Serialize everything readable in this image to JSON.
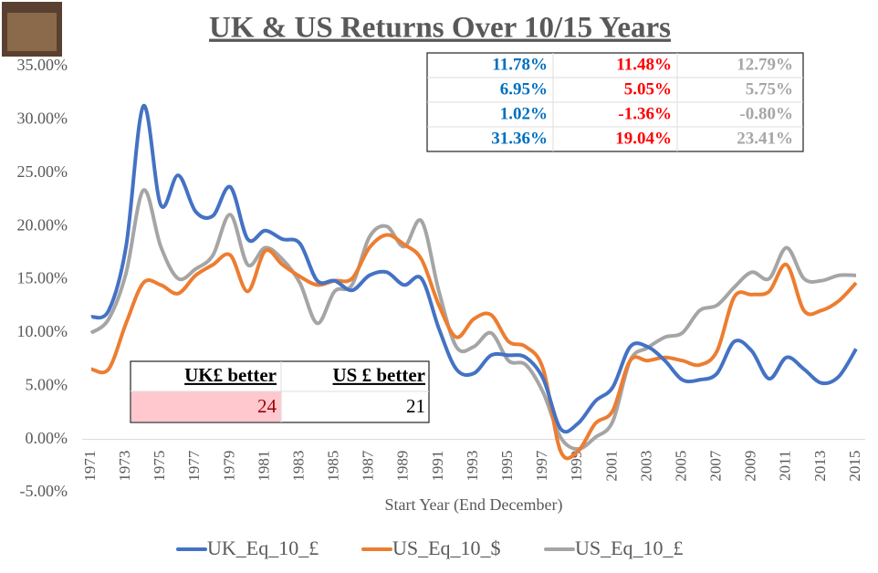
{
  "chart_data": {
    "type": "line",
    "title": "UK & US Returns Over 10/15 Years",
    "x_label": "Start Year (End December)",
    "categories": [
      "1971",
      null,
      "1973",
      null,
      "1975",
      null,
      "1977",
      null,
      "1979",
      null,
      "1981",
      null,
      "1983",
      null,
      "1985",
      null,
      "1987",
      null,
      "1989",
      null,
      "1991",
      null,
      "1993",
      null,
      "1995",
      null,
      "1997",
      null,
      "1999",
      null,
      "2001",
      null,
      "2003",
      null,
      "2005",
      null,
      "2007",
      null,
      "2009",
      null,
      "2011",
      null,
      "2013",
      null,
      "2015"
    ],
    "ylim": [
      -5,
      35
    ],
    "yticks": [
      {
        "value": -5,
        "label": "-5.00%"
      },
      {
        "value": 0,
        "label": "0.00%"
      },
      {
        "value": 5,
        "label": "5.00%"
      },
      {
        "value": 10,
        "label": "10.00%"
      },
      {
        "value": 15,
        "label": "15.00%"
      },
      {
        "value": 20,
        "label": "20.00%"
      },
      {
        "value": 25,
        "label": "25.00%"
      },
      {
        "value": 30,
        "label": "30.00%"
      },
      {
        "value": 35,
        "label": "35.00%"
      }
    ],
    "grid": false,
    "legend": "bottom",
    "series": [
      {
        "name": "UK_Eq_10_£",
        "color": "#4472c4",
        "values": [
          11.5,
          12.1,
          18.1,
          31.3,
          22.0,
          24.8,
          21.4,
          21.0,
          23.7,
          18.8,
          19.6,
          18.8,
          18.4,
          14.9,
          14.9,
          14.0,
          15.4,
          15.7,
          14.5,
          15.1,
          10.4,
          6.6,
          6.2,
          7.9,
          7.9,
          7.7,
          5.7,
          1.0,
          1.5,
          3.6,
          4.9,
          8.7,
          8.7,
          7.4,
          5.6,
          5.6,
          6.2,
          9.2,
          8.3,
          5.7,
          7.7,
          6.6,
          5.3,
          5.9,
          8.5
        ]
      },
      {
        "name": "US_Eq_10_$",
        "color": "#ed7d31",
        "values": [
          6.6,
          6.6,
          10.9,
          14.7,
          14.5,
          13.7,
          15.4,
          16.4,
          17.3,
          13.9,
          17.7,
          16.4,
          15.3,
          14.5,
          14.9,
          15.1,
          18.0,
          19.2,
          18.3,
          16.9,
          12.6,
          9.6,
          11.3,
          11.7,
          9.2,
          8.7,
          6.6,
          -1.1,
          -1.1,
          1.5,
          2.7,
          7.4,
          7.4,
          7.7,
          7.4,
          7.0,
          8.3,
          13.4,
          13.6,
          13.9,
          16.4,
          12.1,
          12.1,
          13.0,
          14.7
        ]
      },
      {
        "name": "US_Eq_10_£",
        "color": "#a5a5a5",
        "values": [
          10.0,
          11.3,
          15.6,
          23.4,
          18.1,
          15.1,
          16.0,
          17.3,
          21.1,
          16.4,
          18.0,
          16.9,
          14.7,
          10.9,
          13.9,
          14.5,
          19.0,
          20.0,
          18.1,
          20.5,
          13.9,
          8.7,
          8.7,
          10.0,
          7.4,
          7.0,
          4.4,
          0.2,
          -0.9,
          0.2,
          1.7,
          7.4,
          8.6,
          9.6,
          10.0,
          12.1,
          12.6,
          14.3,
          15.7,
          15.1,
          18.0,
          15.1,
          14.9,
          15.4,
          15.4
        ]
      }
    ]
  },
  "stats_table": {
    "rows": [
      [
        "11.78%",
        "11.48%",
        "12.79%"
      ],
      [
        "6.95%",
        "5.05%",
        "5.75%"
      ],
      [
        "1.02%",
        "-1.36%",
        "-0.80%"
      ],
      [
        "31.36%",
        "19.04%",
        "23.41%"
      ]
    ]
  },
  "count_table": {
    "headers": [
      "UK£ better",
      "US £ better"
    ],
    "values": [
      24,
      21
    ]
  }
}
